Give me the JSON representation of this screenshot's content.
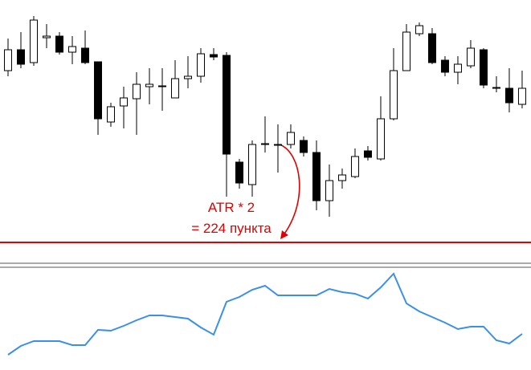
{
  "chart_data": [
    {
      "type": "candlestick",
      "x": [
        0,
        1,
        2,
        3,
        4,
        5,
        6,
        7,
        8,
        9,
        10,
        11,
        12,
        13,
        14,
        15,
        16,
        17,
        18,
        19,
        20,
        21,
        22,
        23,
        24,
        25,
        26,
        27,
        28,
        29,
        30,
        31,
        32,
        33,
        34,
        35,
        36,
        37,
        38,
        39,
        40
      ],
      "open": [
        212,
        238,
        222,
        253,
        255,
        235,
        240,
        223,
        148,
        168,
        177,
        192,
        192,
        178,
        202,
        205,
        232,
        231,
        98,
        70,
        120,
        120,
        120,
        125,
        110,
        50,
        75,
        80,
        112,
        102,
        152,
        212,
        258,
        258,
        225,
        210,
        218,
        238,
        190,
        190,
        170
      ],
      "high": [
        252,
        260,
        280,
        270,
        260,
        255,
        262,
        223,
        172,
        192,
        210,
        215,
        215,
        225,
        230,
        240,
        240,
        235,
        102,
        125,
        155,
        145,
        145,
        130,
        125,
        95,
        90,
        115,
        118,
        180,
        240,
        270,
        272,
        265,
        230,
        230,
        250,
        240,
        205,
        215,
        212
      ],
      "low": [
        205,
        215,
        218,
        240,
        232,
        220,
        220,
        132,
        142,
        140,
        132,
        170,
        162,
        178,
        190,
        197,
        225,
        55,
        65,
        55,
        110,
        85,
        115,
        105,
        38,
        30,
        65,
        78,
        100,
        100,
        150,
        212,
        255,
        220,
        205,
        195,
        215,
        190,
        185,
        160,
        165
      ],
      "close": [
        238,
        220,
        275,
        255,
        235,
        242,
        222,
        152,
        167,
        178,
        195,
        195,
        193,
        202,
        205,
        233,
        229,
        108,
        72,
        120,
        121,
        119,
        135,
        110,
        50,
        75,
        82,
        105,
        104,
        152,
        212,
        260,
        268,
        222,
        210,
        220,
        240,
        194,
        191,
        172,
        190
      ],
      "up_color": "#ffffff",
      "down_color": "#000000",
      "edge_color": "#000000",
      "xlim": [
        -0.625,
        40.69
      ],
      "ylim": [
        -20,
        300
      ],
      "hline": {
        "value": -2,
        "color": "#e00000"
      },
      "annotations": [
        "ATR * 2",
        "= 224 пункта"
      ],
      "annotation_color": "#e00000"
    },
    {
      "type": "line",
      "x": [
        0,
        1,
        2,
        3,
        4,
        5,
        6,
        7,
        8,
        9,
        10,
        11,
        12,
        13,
        14,
        15,
        16,
        17,
        18,
        19,
        20,
        21,
        22,
        23,
        24,
        25,
        26,
        27,
        28,
        29,
        30,
        31,
        32,
        33,
        34,
        35,
        36,
        37,
        38,
        39,
        40
      ],
      "series": [
        {
          "color": "#3a8fe8",
          "values": [
            19,
            30,
            36,
            36,
            36,
            31,
            31,
            50,
            49,
            55,
            62,
            68,
            68,
            66,
            64,
            53,
            44,
            85,
            91,
            100,
            105,
            93,
            93,
            93,
            93,
            101,
            97,
            95,
            89,
            103,
            120,
            83,
            73,
            66,
            59,
            51,
            54,
            54,
            37,
            33,
            45
          ]
        }
      ],
      "xlim": [
        -0.625,
        40.69
      ],
      "ylim": [
        0,
        123
      ]
    }
  ]
}
